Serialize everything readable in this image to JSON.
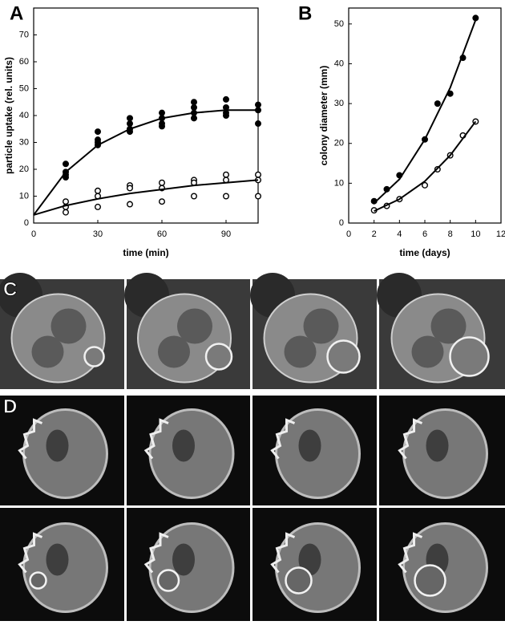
{
  "chart_data": [
    {
      "type": "scatter",
      "panel_label": "A",
      "x_label": "time (min)",
      "y_label": "particle uptake (rel. units)",
      "xlim": [
        0,
        105
      ],
      "xticks": [
        0,
        30,
        60,
        90
      ],
      "ylim": [
        0,
        80
      ],
      "yticks": [
        0,
        10,
        20,
        30,
        40,
        50,
        60,
        70
      ],
      "color": "#000000",
      "series": [
        {
          "marker": "filled",
          "x": [
            15,
            15,
            15,
            15,
            30,
            30,
            30,
            30,
            45,
            45,
            45,
            45,
            60,
            60,
            60,
            60,
            75,
            75,
            75,
            75,
            90,
            90,
            90,
            90,
            105,
            105,
            105
          ],
          "values": [
            22,
            19,
            18,
            17,
            34,
            31,
            30,
            29,
            39,
            37,
            35,
            34,
            41,
            39,
            37,
            36,
            45,
            43,
            41,
            39,
            46,
            43,
            41,
            40,
            44,
            42,
            37
          ]
        },
        {
          "marker": "open",
          "x": [
            15,
            15,
            15,
            30,
            30,
            30,
            45,
            45,
            45,
            60,
            60,
            60,
            75,
            75,
            75,
            90,
            90,
            90,
            105,
            105,
            105
          ],
          "values": [
            8,
            6,
            4,
            12,
            10,
            6,
            14,
            13,
            7,
            15,
            13,
            8,
            16,
            15,
            10,
            18,
            16,
            10,
            18,
            16,
            10
          ]
        },
        {
          "marker": "line",
          "x": [
            0,
            15,
            30,
            45,
            60,
            75,
            90,
            105
          ],
          "values": [
            3,
            19,
            29,
            35,
            39,
            41,
            42,
            42
          ]
        },
        {
          "marker": "line",
          "x": [
            0,
            15,
            30,
            45,
            60,
            75,
            90,
            105
          ],
          "values": [
            3,
            6.5,
            9,
            11,
            12.5,
            14,
            15,
            16
          ]
        }
      ]
    },
    {
      "type": "scatter",
      "panel_label": "B",
      "x_label": "time (days)",
      "y_label": "colony diameter (mm)",
      "xlim": [
        0,
        12
      ],
      "xticks": [
        0,
        2,
        4,
        6,
        8,
        10,
        12
      ],
      "ylim": [
        0,
        54
      ],
      "yticks": [
        0,
        10,
        20,
        30,
        40,
        50
      ],
      "color": "#000000",
      "series": [
        {
          "marker": "filled",
          "x": [
            2,
            3,
            4,
            6,
            7,
            8,
            9,
            10
          ],
          "values": [
            5.5,
            8.5,
            12,
            21,
            30,
            32.5,
            41.5,
            51.5
          ]
        },
        {
          "marker": "open",
          "x": [
            2,
            3,
            4,
            6,
            7,
            8,
            9,
            10
          ],
          "values": [
            3.2,
            4.3,
            6,
            9.5,
            13.5,
            17,
            22,
            25.5
          ]
        },
        {
          "marker": "line",
          "x": [
            2,
            4,
            6,
            8,
            10
          ],
          "values": [
            5,
            11,
            21,
            34,
            51
          ]
        },
        {
          "marker": "line",
          "x": [
            2,
            4,
            6,
            8,
            10
          ],
          "values": [
            3,
            6,
            10.5,
            17,
            25.5
          ]
        }
      ]
    }
  ],
  "panels": [
    {
      "label": "C"
    },
    {
      "label": "D"
    }
  ]
}
